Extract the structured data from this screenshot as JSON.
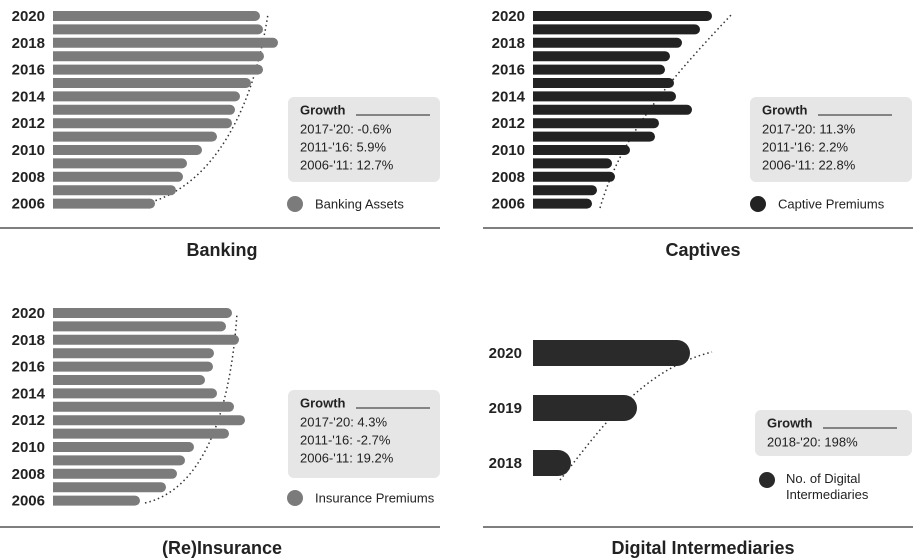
{
  "chart_data": [
    {
      "type": "bar",
      "title": "Banking",
      "categories": [
        "2006",
        null,
        "2008",
        null,
        "2010",
        null,
        "2012",
        null,
        "2014",
        null,
        "2016",
        null,
        "2018",
        null,
        "2020"
      ],
      "series": [
        {
          "name": "Banking Assets",
          "color": "#7b7b7b",
          "values": [
            102,
            123,
            130,
            134,
            149,
            164,
            179,
            182,
            187,
            198,
            210,
            211,
            225,
            210,
            207
          ]
        }
      ],
      "growth_title": "Growth",
      "growth": [
        "2017-'20: -0.6%",
        "2011-'16: 5.9%",
        "2006-'11: 12.7%"
      ]
    },
    {
      "type": "bar",
      "title": "Captives",
      "categories": [
        "2006",
        null,
        "2008",
        null,
        "2010",
        null,
        "2012",
        null,
        "2014",
        null,
        "2016",
        null,
        "2018",
        null,
        "2020"
      ],
      "series": [
        {
          "name": "Captive Premiums",
          "color": "#222222",
          "values": [
            59,
            64,
            82,
            79,
            97,
            122,
            126,
            159,
            143,
            141,
            132,
            137,
            149,
            167,
            179
          ]
        }
      ],
      "growth_title": "Growth",
      "growth": [
        "2017-'20: 11.3%",
        "2011-'16: 2.2%",
        "2006-'11: 22.8%"
      ]
    },
    {
      "type": "bar",
      "title": "(Re)Insurance",
      "categories": [
        "2006",
        null,
        "2008",
        null,
        "2010",
        null,
        "2012",
        null,
        "2014",
        null,
        "2016",
        null,
        "2018",
        null,
        "2020"
      ],
      "series": [
        {
          "name": "Insurance Premiums",
          "color": "#7b7b7b",
          "values": [
            87,
            113,
            124,
            132,
            141,
            176,
            192,
            181,
            164,
            152,
            160,
            161,
            186,
            173,
            179
          ]
        }
      ],
      "growth_title": "Growth",
      "growth": [
        "2017-'20: 4.3%",
        "2011-'16: -2.7%",
        "2006-'11: 19.2%"
      ]
    },
    {
      "type": "bar",
      "title": "Digital Intermediaries",
      "categories": [
        "2018",
        "2019",
        "2020"
      ],
      "series": [
        {
          "name": "No. of Digital Intermediaries",
          "color": "#2a2a2a",
          "values": [
            38,
            104,
            157
          ]
        }
      ],
      "growth_title": "Growth",
      "growth": [
        "2018-'20: 198%"
      ]
    }
  ]
}
